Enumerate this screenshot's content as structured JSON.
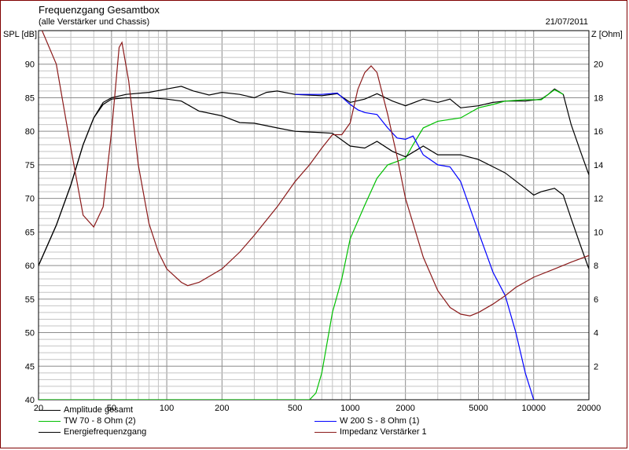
{
  "chart_data": {
    "type": "line",
    "title": "Frequenzgang Gesamtbox",
    "subtitle": "(alle Verstärker und Chassis)",
    "date": "21/07/2011",
    "ylabel_left": "SPL [dB]",
    "ylabel_right": "Z [Ohm]",
    "x_scale": "log",
    "xlim": [
      20,
      20000
    ],
    "ylim_left": [
      40,
      95
    ],
    "ylim_right": [
      0,
      22
    ],
    "grid": true,
    "x_ticks": [
      "20",
      "50",
      "100",
      "200",
      "500",
      "1000",
      "2000",
      "5000",
      "10000",
      "20000"
    ],
    "y_ticks_left": [
      "40",
      "45",
      "50",
      "55",
      "60",
      "65",
      "70",
      "75",
      "80",
      "85",
      "90"
    ],
    "y_ticks_right": [
      "2",
      "4",
      "6",
      "8",
      "10",
      "12",
      "14",
      "16",
      "18",
      "20"
    ],
    "series": [
      {
        "name": "Amplitude gesamt",
        "axis": "left",
        "color": "#000000",
        "points": [
          [
            20,
            60
          ],
          [
            25,
            66
          ],
          [
            30,
            72
          ],
          [
            35,
            78
          ],
          [
            40,
            82
          ],
          [
            45,
            84.3
          ],
          [
            50,
            85
          ],
          [
            60,
            85.5
          ],
          [
            80,
            85.8
          ],
          [
            100,
            86.3
          ],
          [
            120,
            86.7
          ],
          [
            140,
            86
          ],
          [
            170,
            85.4
          ],
          [
            200,
            85.8
          ],
          [
            250,
            85.5
          ],
          [
            300,
            85
          ],
          [
            350,
            85.8
          ],
          [
            400,
            86
          ],
          [
            500,
            85.5
          ],
          [
            700,
            85.3
          ],
          [
            850,
            85.6
          ],
          [
            1000,
            84.3
          ],
          [
            1200,
            84.8
          ],
          [
            1400,
            85.6
          ],
          [
            1700,
            84.5
          ],
          [
            2000,
            83.8
          ],
          [
            2500,
            84.8
          ],
          [
            3000,
            84.3
          ],
          [
            3500,
            84.8
          ],
          [
            4000,
            83.5
          ],
          [
            5000,
            83.8
          ],
          [
            6000,
            84.3
          ],
          [
            7000,
            84.5
          ],
          [
            9000,
            84.5
          ],
          [
            11000,
            84.8
          ],
          [
            12000,
            85.5
          ],
          [
            13000,
            86.3
          ],
          [
            14500,
            85.5
          ],
          [
            16000,
            81
          ],
          [
            18000,
            77
          ],
          [
            20000,
            73.5
          ]
        ]
      },
      {
        "name": "TW 70 - 8 Ohm (2)",
        "axis": "left",
        "color": "#00c000",
        "points": [
          [
            20,
            40
          ],
          [
            600,
            40
          ],
          [
            650,
            41
          ],
          [
            700,
            44
          ],
          [
            800,
            53
          ],
          [
            900,
            58
          ],
          [
            1000,
            64
          ],
          [
            1200,
            69
          ],
          [
            1400,
            73
          ],
          [
            1600,
            75
          ],
          [
            1800,
            75.5
          ],
          [
            2000,
            76
          ],
          [
            2200,
            78
          ],
          [
            2500,
            80.5
          ],
          [
            3000,
            81.5
          ],
          [
            4000,
            82
          ],
          [
            5000,
            83.5
          ],
          [
            6000,
            84
          ],
          [
            7000,
            84.5
          ],
          [
            9000,
            84.7
          ],
          [
            11000,
            84.7
          ],
          [
            13000,
            86.2
          ],
          [
            14500,
            85.5
          ]
        ]
      },
      {
        "name": "Energiefrequenzgang",
        "axis": "left",
        "color": "#000000",
        "points": [
          [
            20,
            60
          ],
          [
            25,
            66
          ],
          [
            30,
            72
          ],
          [
            35,
            78
          ],
          [
            40,
            82
          ],
          [
            45,
            84
          ],
          [
            50,
            84.8
          ],
          [
            60,
            85
          ],
          [
            80,
            85
          ],
          [
            100,
            84.8
          ],
          [
            120,
            84.5
          ],
          [
            150,
            83
          ],
          [
            200,
            82.3
          ],
          [
            250,
            81.3
          ],
          [
            300,
            81.2
          ],
          [
            400,
            80.5
          ],
          [
            500,
            80
          ],
          [
            700,
            79.8
          ],
          [
            800,
            79.7
          ],
          [
            1000,
            77.8
          ],
          [
            1200,
            77.5
          ],
          [
            1400,
            78.5
          ],
          [
            1700,
            77
          ],
          [
            2000,
            76.2
          ],
          [
            2500,
            77.8
          ],
          [
            3000,
            76.5
          ],
          [
            4000,
            76.5
          ],
          [
            5000,
            75.8
          ],
          [
            7000,
            73.8
          ],
          [
            9000,
            71.5
          ],
          [
            10000,
            70.5
          ],
          [
            11000,
            71
          ],
          [
            13000,
            71.5
          ],
          [
            14500,
            70.5
          ],
          [
            16000,
            67
          ],
          [
            18000,
            63
          ],
          [
            20000,
            59.5
          ]
        ]
      },
      {
        "name": "W 200 S - 8 Ohm (1)",
        "axis": "left",
        "color": "#0000ff",
        "points": [
          [
            500,
            85.5
          ],
          [
            700,
            85.5
          ],
          [
            850,
            85.7
          ],
          [
            1000,
            84
          ],
          [
            1100,
            83.2
          ],
          [
            1200,
            82.8
          ],
          [
            1400,
            82.5
          ],
          [
            1600,
            80.5
          ],
          [
            1800,
            79
          ],
          [
            2000,
            78.8
          ],
          [
            2200,
            79.3
          ],
          [
            2500,
            76.5
          ],
          [
            3000,
            75
          ],
          [
            3500,
            74.7
          ],
          [
            4000,
            72.5
          ],
          [
            5000,
            65
          ],
          [
            6000,
            59
          ],
          [
            7000,
            55.5
          ],
          [
            8000,
            50
          ],
          [
            9000,
            44
          ],
          [
            10000,
            40
          ]
        ]
      },
      {
        "name": "Impedanz Verstärker 1",
        "axis": "right",
        "color": "#8b1a1a",
        "points": [
          [
            20,
            22.5
          ],
          [
            25,
            20
          ],
          [
            30,
            15
          ],
          [
            35,
            11
          ],
          [
            40,
            10.3
          ],
          [
            45,
            11.5
          ],
          [
            50,
            16
          ],
          [
            55,
            21
          ],
          [
            57,
            21.3
          ],
          [
            62,
            19
          ],
          [
            70,
            14
          ],
          [
            80,
            10.5
          ],
          [
            90,
            8.8
          ],
          [
            100,
            7.8
          ],
          [
            120,
            7
          ],
          [
            130,
            6.8
          ],
          [
            150,
            7
          ],
          [
            200,
            7.8
          ],
          [
            250,
            8.8
          ],
          [
            300,
            9.8
          ],
          [
            400,
            11.5
          ],
          [
            500,
            13
          ],
          [
            600,
            14
          ],
          [
            700,
            15
          ],
          [
            800,
            15.8
          ],
          [
            900,
            15.8
          ],
          [
            1000,
            16.5
          ],
          [
            1100,
            18.5
          ],
          [
            1200,
            19.5
          ],
          [
            1300,
            19.9
          ],
          [
            1400,
            19.5
          ],
          [
            1600,
            17
          ],
          [
            1800,
            14.5
          ],
          [
            2000,
            12
          ],
          [
            2500,
            8.5
          ],
          [
            3000,
            6.5
          ],
          [
            3500,
            5.5
          ],
          [
            4000,
            5.1
          ],
          [
            4500,
            5
          ],
          [
            5000,
            5.2
          ],
          [
            6000,
            5.7
          ],
          [
            7000,
            6.2
          ],
          [
            8000,
            6.7
          ],
          [
            10000,
            7.3
          ],
          [
            13000,
            7.8
          ],
          [
            16000,
            8.2
          ],
          [
            20000,
            8.6
          ]
        ]
      }
    ],
    "legend_position": "bottom"
  }
}
